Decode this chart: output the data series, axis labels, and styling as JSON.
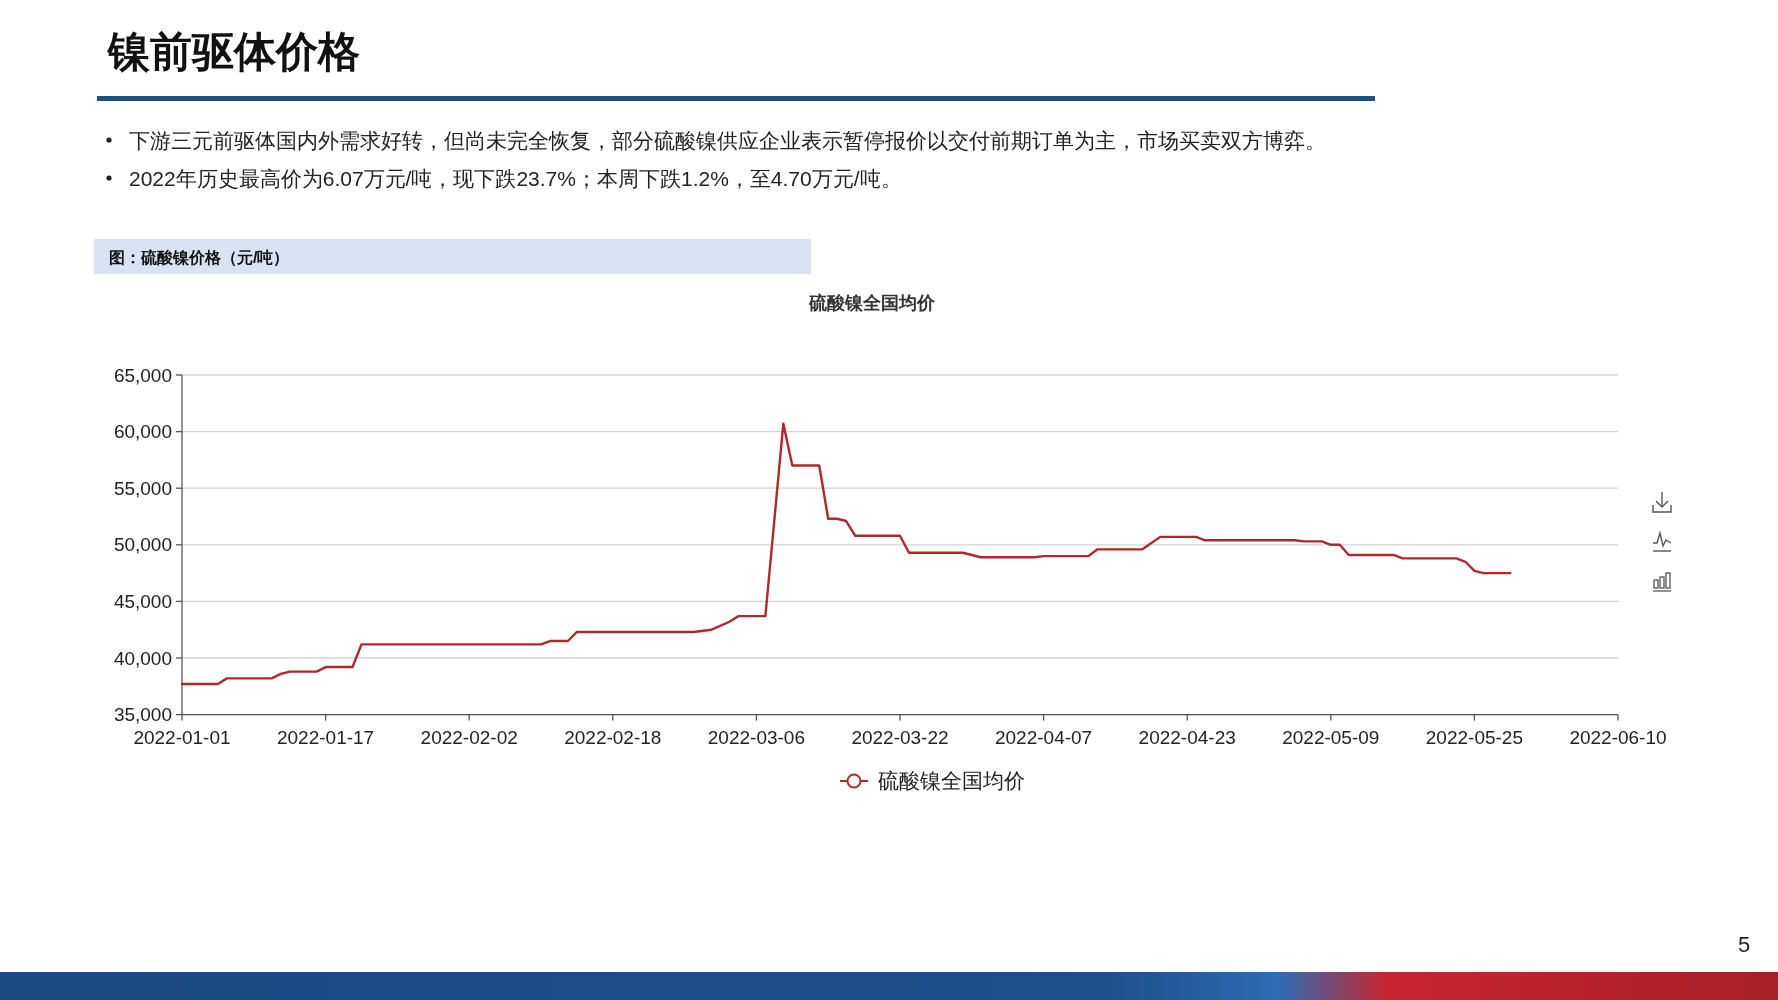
{
  "chart_data": {
    "type": "line",
    "title": "硫酸镍全国均价",
    "subtitle": "图：硫酸镍价格（元/吨）",
    "annotations": [
      "镍前驱体价格",
      "下游三元前驱体国内外需求好转，但尚未完全恢复，部分硫酸镍供应企业表示暂停报价以交付前期订单为主，市场买卖双方博弈。",
      "2022年历史最高价为6.07万元/吨，现下跌23.7%；本周下跌1.2%，至4.70万元/吨。",
      "5"
    ],
    "x": [
      "2022-01-01",
      "2022-01-05",
      "2022-01-06",
      "2022-01-11",
      "2022-01-12",
      "2022-01-13",
      "2022-01-16",
      "2022-01-17",
      "2022-01-20",
      "2022-01-21",
      "2022-02-10",
      "2022-02-11",
      "2022-02-13",
      "2022-02-14",
      "2022-02-27",
      "2022-03-01",
      "2022-03-03",
      "2022-03-04",
      "2022-03-07",
      "2022-03-09",
      "2022-03-10",
      "2022-03-13",
      "2022-03-14",
      "2022-03-15",
      "2022-03-16",
      "2022-03-17",
      "2022-03-22",
      "2022-03-23",
      "2022-03-29",
      "2022-03-31",
      "2022-04-06",
      "2022-04-07",
      "2022-04-12",
      "2022-04-13",
      "2022-04-18",
      "2022-04-20",
      "2022-04-24",
      "2022-04-25",
      "2022-05-05",
      "2022-05-06",
      "2022-05-08",
      "2022-05-09",
      "2022-05-10",
      "2022-05-11",
      "2022-05-16",
      "2022-05-17",
      "2022-05-23",
      "2022-05-24",
      "2022-05-25",
      "2022-05-26",
      "2022-05-29"
    ],
    "series": [
      {
        "name": "硫酸镍全国均价",
        "color": "#b0282d",
        "values": [
          37700,
          37700,
          38200,
          38200,
          38600,
          38800,
          38800,
          39200,
          39200,
          41200,
          41200,
          41500,
          41500,
          42300,
          42300,
          42500,
          43200,
          43700,
          43700,
          60700,
          57000,
          57000,
          52300,
          52300,
          52100,
          50800,
          50800,
          49300,
          49300,
          48900,
          48900,
          49000,
          49000,
          49600,
          49600,
          50700,
          50700,
          50400,
          50400,
          50300,
          50300,
          50000,
          50000,
          49100,
          49100,
          48800,
          48800,
          48500,
          47700,
          47500,
          47500
        ]
      }
    ],
    "xlim": [
      "2022-01-01",
      "2022-06-10"
    ],
    "xticks": [
      "2022-01-01",
      "2022-01-17",
      "2022-02-02",
      "2022-02-18",
      "2022-03-06",
      "2022-03-22",
      "2022-04-07",
      "2022-04-23",
      "2022-05-09",
      "2022-05-25",
      "2022-06-10"
    ],
    "ylim": [
      35000,
      65000
    ],
    "yticks": [
      {
        "value": 35000,
        "label": "35,000"
      },
      {
        "value": 40000,
        "label": "40,000"
      },
      {
        "value": 45000,
        "label": "45,000"
      },
      {
        "value": 50000,
        "label": "50,000"
      },
      {
        "value": 55000,
        "label": "55,000"
      },
      {
        "value": 60000,
        "label": "60,000"
      },
      {
        "value": 65000,
        "label": "65,000"
      }
    ],
    "grid": "y",
    "legend": "bottom"
  }
}
